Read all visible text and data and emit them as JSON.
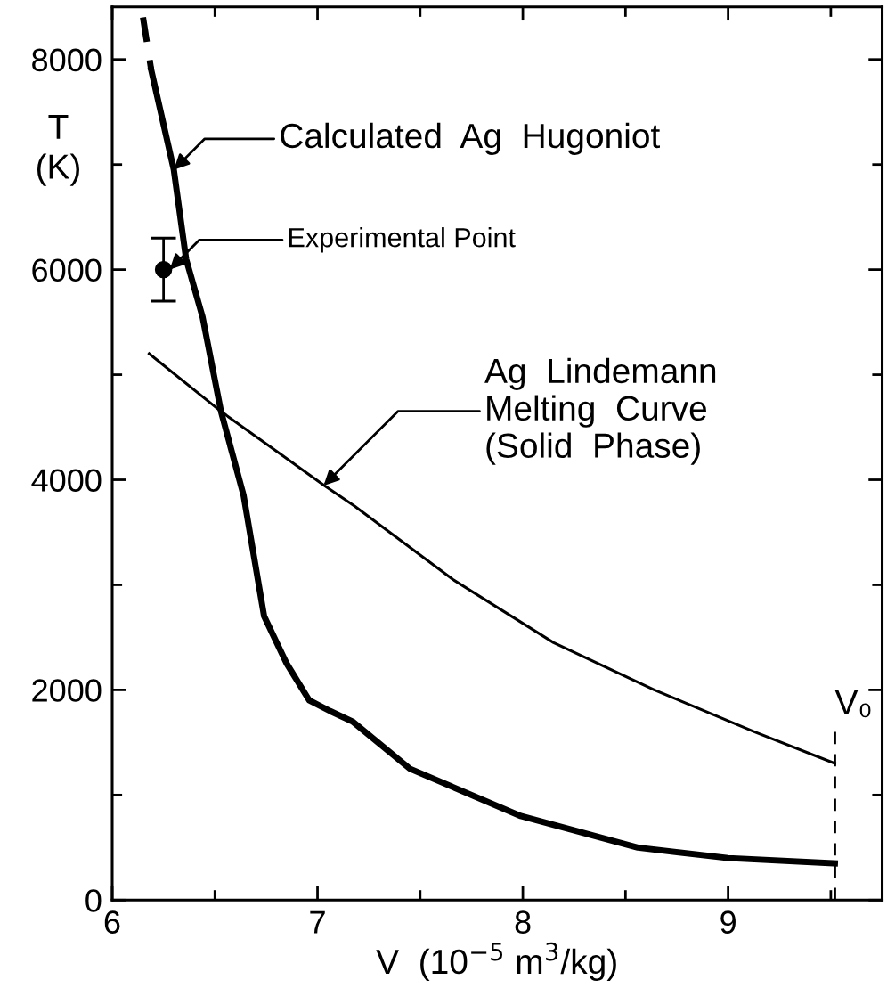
{
  "chart_data": {
    "type": "line",
    "xlabel": "V  (10$^{−5}$ m$^{3}$/kg)",
    "ylabel": "T\n(K)",
    "xlim": [
      6,
      9.75
    ],
    "ylim": [
      0,
      8500
    ],
    "xticks": [
      6,
      {
        "value": 6.5,
        "label": null
      },
      7,
      {
        "value": 7.5,
        "label": null
      },
      8,
      {
        "value": 8.5,
        "label": null
      },
      9,
      {
        "value": 9.5,
        "label": null
      }
    ],
    "yticks": [
      0,
      {
        "value": 1000,
        "label": null
      },
      2000,
      {
        "value": 3000,
        "label": null
      },
      4000,
      {
        "value": 5000,
        "label": null
      },
      6000,
      {
        "value": 7000,
        "label": null
      },
      8000
    ],
    "grid": false,
    "marker": "none",
    "series": [
      {
        "color": "#000000",
        "line_style": "solid",
        "x": [
          6.19,
          6.3,
          6.36,
          6.44,
          6.53,
          6.64,
          6.74,
          6.85,
          6.96,
          7.06,
          7.17,
          7.45,
          7.99,
          8.56,
          9.0,
          9.52
        ],
        "values": [
          7900,
          6950,
          6100,
          5550,
          4650,
          3850,
          2700,
          2250,
          1900,
          1800,
          1700,
          1250,
          800,
          500,
          400,
          350
        ]
      },
      {
        "color": "#000000",
        "line_style": "dashed",
        "x": [
          6.15,
          6.19
        ],
        "values": [
          8400,
          7900
        ]
      },
      {
        "color": "#000000",
        "line_style": "solid",
        "x": [
          6.18,
          6.53,
          7.03,
          7.18,
          7.66,
          8.15,
          8.64,
          9.13,
          9.52
        ],
        "values": [
          5200,
          4650,
          3950,
          3750,
          3050,
          2450,
          2000,
          1600,
          1300
        ]
      },
      {
        "type": "scatter",
        "marker": "circle",
        "color": "#000000",
        "x": [
          6.25
        ],
        "values": [
          6000
        ],
        "errors": [
          300
        ]
      }
    ],
    "ref_lines": [
      {
        "axis": "x",
        "value": 9.52,
        "label": "V₀",
        "line_style": "dashed",
        "color": "#000000"
      }
    ],
    "annotations": [
      {
        "text": "Calculated  Ag  Hugoniot",
        "x": 6.3,
        "y": 6950
      },
      {
        "text": "Experimental Point",
        "x": 6.28,
        "y": 6000
      },
      {
        "text": "Ag  Lindemann\nMelting  Curve\n(Solid  Phase)",
        "x": 7.03,
        "y": 3945
      }
    ]
  }
}
